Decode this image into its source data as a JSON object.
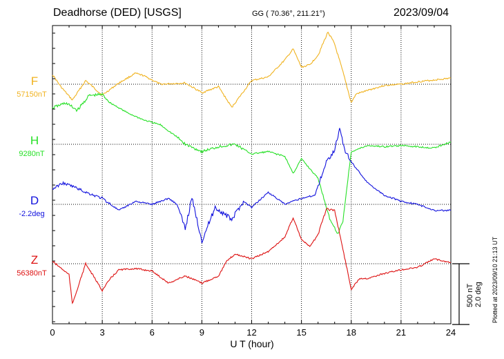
{
  "header": {
    "station": "Deadhorse (DED)  [USGS]",
    "coords": "GG ( 70.36°, 211.21°)",
    "date": "2023/09/04"
  },
  "footer": {
    "plotted": "Plotted at 2023/09/10 21:13 UT",
    "scale_nt": "500 nT",
    "scale_deg": "2.0 deg"
  },
  "colors": {
    "F": "#f0b21e",
    "H": "#26e026",
    "D": "#1010dd",
    "Z": "#dd1010",
    "grid": "#000000"
  },
  "chart_data": {
    "type": "line",
    "xlabel": "U T (hour)",
    "xlim": [
      0,
      24
    ],
    "xticks": [
      "0",
      "3",
      "6",
      "9",
      "12",
      "15",
      "18",
      "21",
      "24"
    ],
    "grid": true,
    "scale_bar": {
      "nT": 500,
      "deg": 2.0
    },
    "series": [
      {
        "name": "F",
        "label": "F",
        "baseline_label": "57150nT",
        "baseline": 57150,
        "unit": "nT",
        "points": [
          [
            0,
            57230
          ],
          [
            0.5,
            57130
          ],
          [
            1.2,
            57020
          ],
          [
            2,
            57180
          ],
          [
            3,
            57060
          ],
          [
            4,
            57160
          ],
          [
            5,
            57240
          ],
          [
            5.5,
            57220
          ],
          [
            6.5,
            57150
          ],
          [
            8,
            57160
          ],
          [
            9,
            57080
          ],
          [
            10,
            57130
          ],
          [
            10.8,
            56960
          ],
          [
            12,
            57180
          ],
          [
            13,
            57210
          ],
          [
            14,
            57350
          ],
          [
            14.5,
            57440
          ],
          [
            15,
            57290
          ],
          [
            15.5,
            57310
          ],
          [
            16,
            57390
          ],
          [
            16.6,
            57580
          ],
          [
            17,
            57480
          ],
          [
            17.5,
            57250
          ],
          [
            18,
            57000
          ],
          [
            18.3,
            57070
          ],
          [
            19,
            57100
          ],
          [
            20,
            57140
          ],
          [
            21,
            57150
          ],
          [
            22,
            57170
          ],
          [
            24,
            57200
          ]
        ]
      },
      {
        "name": "H",
        "label": "H",
        "baseline_label": "9280nT",
        "baseline": 9280,
        "unit": "nT",
        "points": [
          [
            0,
            9580
          ],
          [
            0.8,
            9620
          ],
          [
            1.5,
            9560
          ],
          [
            2.2,
            9680
          ],
          [
            3,
            9690
          ],
          [
            3.5,
            9620
          ],
          [
            4.5,
            9540
          ],
          [
            5.5,
            9480
          ],
          [
            6.5,
            9440
          ],
          [
            7.5,
            9340
          ],
          [
            8,
            9280
          ],
          [
            9,
            9220
          ],
          [
            10,
            9260
          ],
          [
            11,
            9280
          ],
          [
            12,
            9200
          ],
          [
            13,
            9220
          ],
          [
            14,
            9180
          ],
          [
            14.5,
            9040
          ],
          [
            15,
            9160
          ],
          [
            16,
            9000
          ],
          [
            16.7,
            8670
          ],
          [
            17.2,
            8540
          ],
          [
            17.5,
            8650
          ],
          [
            18,
            9220
          ],
          [
            19,
            9270
          ],
          [
            20,
            9260
          ],
          [
            21,
            9270
          ],
          [
            22,
            9260
          ],
          [
            23,
            9250
          ],
          [
            24,
            9300
          ]
        ]
      },
      {
        "name": "D",
        "label": "D",
        "baseline_label": "-2.2deg",
        "baseline": -2.2,
        "unit": "deg",
        "points": [
          [
            0,
            -1.7
          ],
          [
            0.6,
            -1.5
          ],
          [
            1.2,
            -1.6
          ],
          [
            2,
            -1.8
          ],
          [
            3,
            -2.0
          ],
          [
            4,
            -2.4
          ],
          [
            5,
            -2.1
          ],
          [
            6,
            -2.2
          ],
          [
            7,
            -2.0
          ],
          [
            7.5,
            -2.2
          ],
          [
            8,
            -3.0
          ],
          [
            8.4,
            -2.0
          ],
          [
            9,
            -3.4
          ],
          [
            9.8,
            -2.3
          ],
          [
            10.8,
            -2.7
          ],
          [
            11.5,
            -2.1
          ],
          [
            12,
            -2.3
          ],
          [
            13,
            -1.8
          ],
          [
            14,
            -2.2
          ],
          [
            15,
            -2.0
          ],
          [
            15.8,
            -1.9
          ],
          [
            16.5,
            -0.8
          ],
          [
            17,
            -0.4
          ],
          [
            17.3,
            0.3
          ],
          [
            17.6,
            -0.4
          ],
          [
            18,
            -0.8
          ],
          [
            19,
            -1.5
          ],
          [
            20,
            -1.9
          ],
          [
            21,
            -2.1
          ],
          [
            22,
            -2.2
          ],
          [
            23,
            -2.4
          ],
          [
            24,
            -2.4
          ]
        ]
      },
      {
        "name": "Z",
        "label": "Z",
        "baseline_label": "56380nT",
        "baseline": 56380,
        "unit": "nT",
        "points": [
          [
            0,
            56400
          ],
          [
            1,
            56290
          ],
          [
            1.2,
            56050
          ],
          [
            2,
            56380
          ],
          [
            3,
            56160
          ],
          [
            3.5,
            56260
          ],
          [
            4,
            56330
          ],
          [
            5,
            56340
          ],
          [
            6,
            56320
          ],
          [
            7,
            56220
          ],
          [
            8,
            56280
          ],
          [
            9,
            56220
          ],
          [
            10,
            56280
          ],
          [
            10.5,
            56400
          ],
          [
            11,
            56460
          ],
          [
            12,
            56420
          ],
          [
            13,
            56480
          ],
          [
            14,
            56600
          ],
          [
            14.5,
            56760
          ],
          [
            15,
            56580
          ],
          [
            15.5,
            56520
          ],
          [
            16,
            56620
          ],
          [
            16.5,
            56830
          ],
          [
            17,
            56820
          ],
          [
            17.5,
            56500
          ],
          [
            18,
            56170
          ],
          [
            18.5,
            56260
          ],
          [
            19,
            56260
          ],
          [
            20,
            56300
          ],
          [
            21,
            56330
          ],
          [
            22,
            56350
          ],
          [
            23,
            56420
          ],
          [
            24,
            56390
          ]
        ]
      }
    ]
  }
}
